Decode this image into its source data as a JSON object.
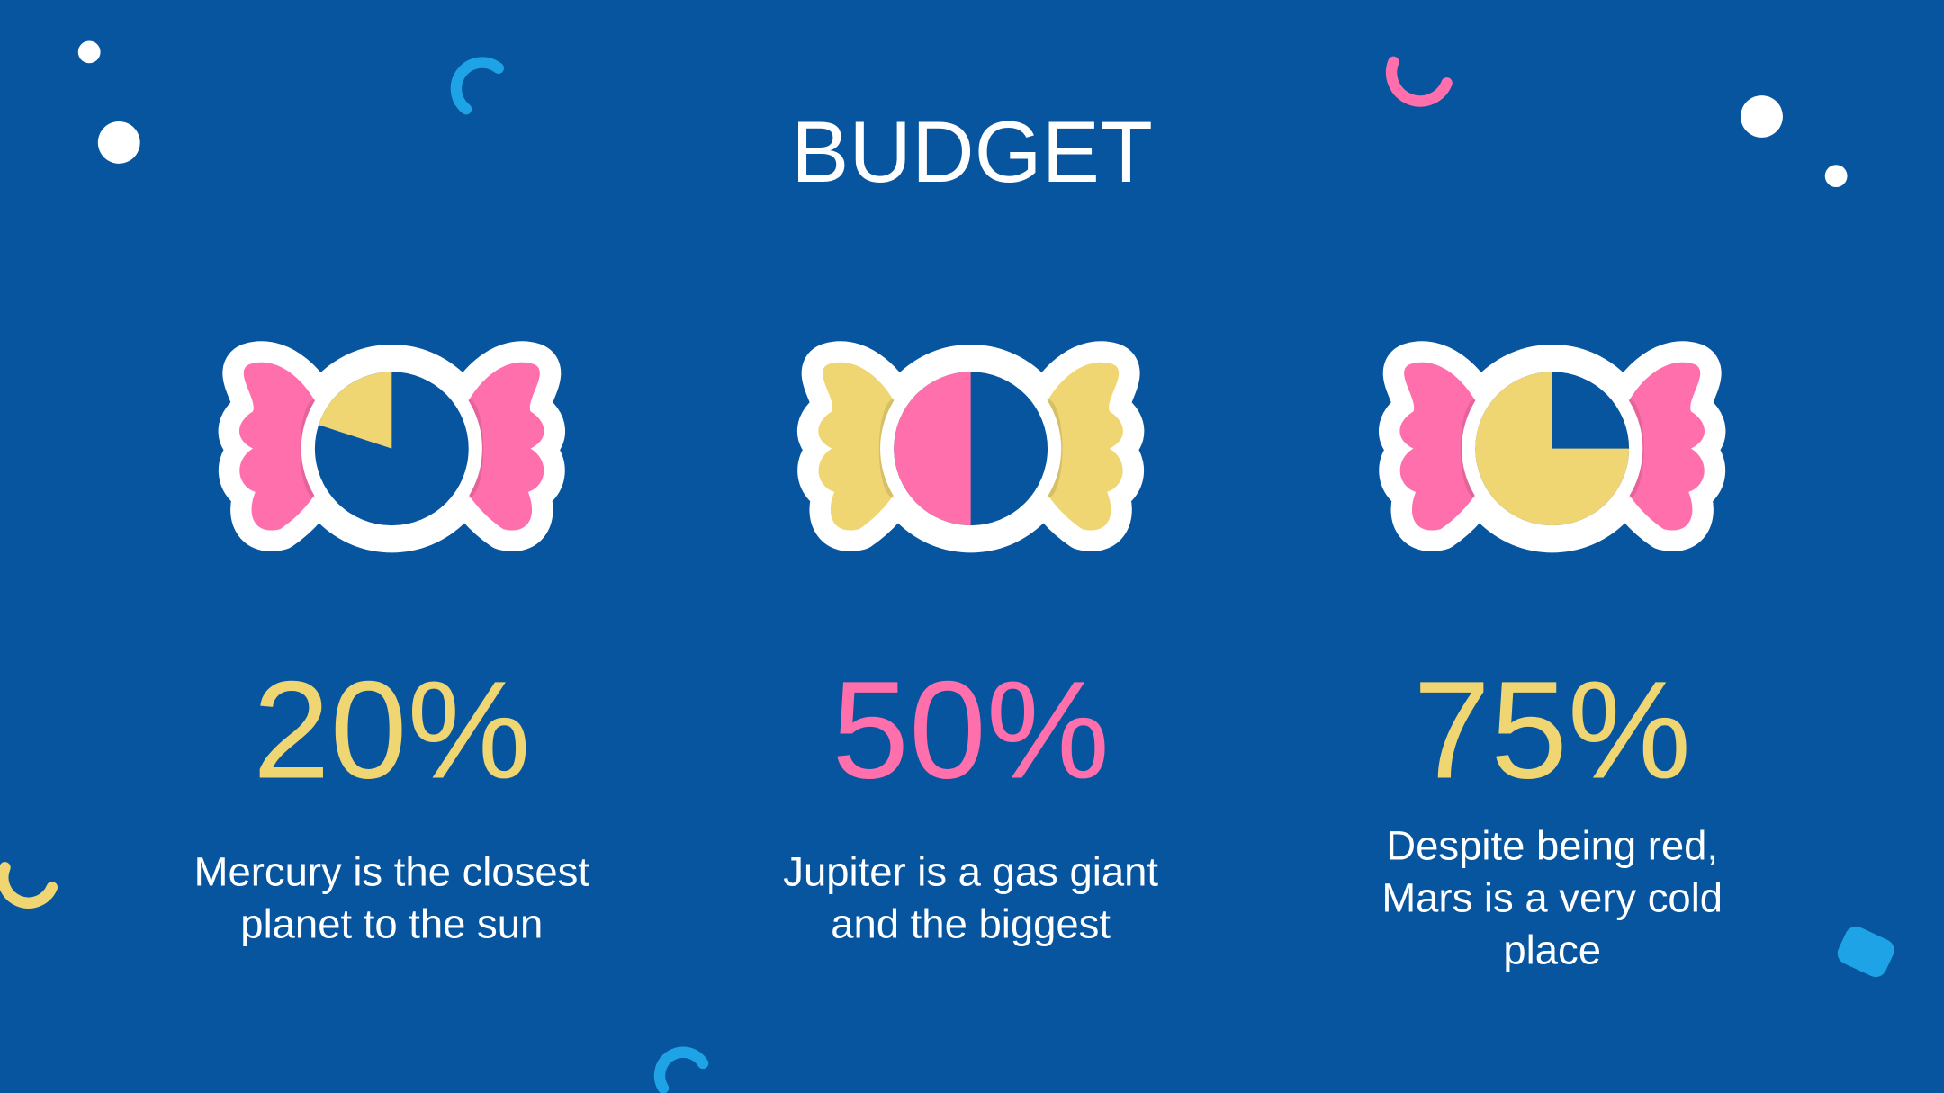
{
  "title": "BUDGET",
  "chart_data": [
    {
      "type": "pie",
      "values": [
        20
      ],
      "value_labels": [
        "20%"
      ],
      "color": "#efd672",
      "wrapper_color": "#ff6fac",
      "description": [
        "Mercury is the closest",
        "planet to the sun"
      ]
    },
    {
      "type": "pie",
      "values": [
        50
      ],
      "value_labels": [
        "50%"
      ],
      "color": "#ff6fac",
      "wrapper_color": "#efd672",
      "description": [
        "Jupiter is a gas giant",
        "and the biggest"
      ]
    },
    {
      "type": "pie",
      "values": [
        75
      ],
      "value_labels": [
        "75%"
      ],
      "color": "#efd672",
      "wrapper_color": "#ff6fac",
      "description": [
        "Despite being red,",
        "Mars is a very cold",
        "place"
      ]
    }
  ]
}
